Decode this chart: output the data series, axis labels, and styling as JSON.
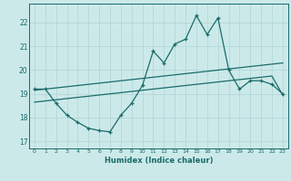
{
  "xlabel": "Humidex (Indice chaleur)",
  "xlim": [
    -0.5,
    23.5
  ],
  "ylim": [
    16.7,
    22.8
  ],
  "yticks": [
    17,
    18,
    19,
    20,
    21,
    22
  ],
  "xticks": [
    0,
    1,
    2,
    3,
    4,
    5,
    6,
    7,
    8,
    9,
    10,
    11,
    12,
    13,
    14,
    15,
    16,
    17,
    18,
    19,
    20,
    21,
    22,
    23
  ],
  "bg_color": "#cce9e9",
  "line_color": "#1a6b6b",
  "grid_color": "#aed4d4",
  "main_line_x": [
    0,
    1,
    2,
    3,
    4,
    5,
    6,
    7,
    8,
    9,
    10,
    11,
    12,
    13,
    14,
    15,
    16,
    17,
    18,
    19,
    20,
    21,
    22,
    23
  ],
  "main_line_y": [
    19.2,
    19.2,
    18.6,
    18.1,
    17.8,
    17.55,
    17.45,
    17.4,
    18.1,
    18.6,
    19.35,
    20.8,
    20.3,
    21.1,
    21.3,
    22.3,
    21.5,
    22.2,
    20.0,
    19.2,
    19.55,
    19.55,
    19.4,
    19.0
  ],
  "upper_line_x": [
    0,
    1,
    2,
    3,
    4,
    5,
    6,
    7,
    8,
    9,
    10,
    11,
    12,
    13,
    14,
    15,
    16,
    17,
    18,
    19,
    20,
    21,
    22,
    23
  ],
  "upper_line_y": [
    19.15,
    19.2,
    19.25,
    19.3,
    19.35,
    19.4,
    19.45,
    19.5,
    19.55,
    19.6,
    19.65,
    19.7,
    19.75,
    19.8,
    19.85,
    19.9,
    19.95,
    20.0,
    20.05,
    20.1,
    20.15,
    20.2,
    20.25,
    20.3
  ],
  "lower_line_x": [
    0,
    1,
    2,
    3,
    4,
    5,
    6,
    7,
    8,
    9,
    10,
    11,
    12,
    13,
    14,
    15,
    16,
    17,
    18,
    19,
    20,
    21,
    22,
    23
  ],
  "lower_line_y": [
    18.65,
    18.7,
    18.75,
    18.8,
    18.85,
    18.9,
    18.95,
    19.0,
    19.05,
    19.1,
    19.15,
    19.2,
    19.25,
    19.3,
    19.35,
    19.4,
    19.45,
    19.5,
    19.55,
    19.6,
    19.65,
    19.7,
    19.75,
    18.95
  ]
}
